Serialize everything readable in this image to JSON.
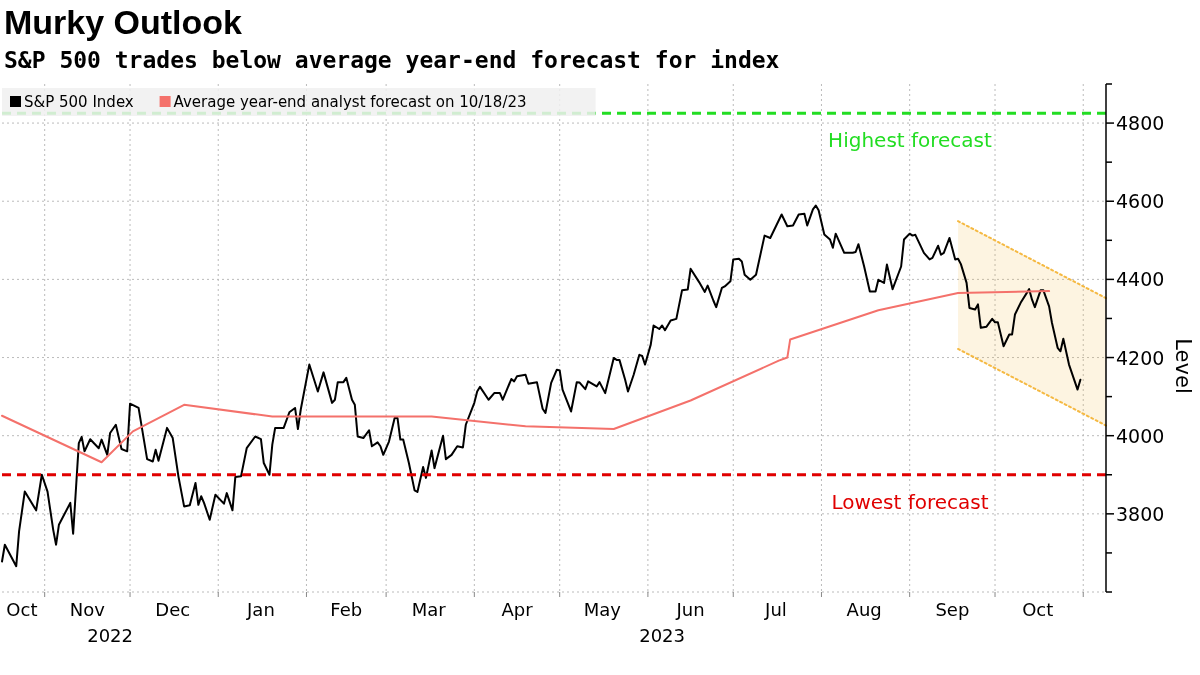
{
  "chart_data": {
    "type": "line",
    "title": "Murky Outlook",
    "subtitle": "S&P 500 trades below average year-end forecast for index",
    "ylabel": "Level",
    "xlim": [
      "2022-10-17",
      "2023-11-09"
    ],
    "ylim": [
      3600,
      4900
    ],
    "yticks": [
      {
        "value": 3600,
        "label": null
      },
      {
        "value": 3700,
        "label": null
      },
      3800,
      {
        "value": 3900,
        "label": null
      },
      4000,
      {
        "value": 4100,
        "label": null
      },
      4200,
      {
        "value": 4300,
        "label": null
      },
      4400,
      {
        "value": 4500,
        "label": null
      },
      4600,
      {
        "value": 4700,
        "label": null
      },
      4800,
      {
        "value": 4900,
        "label": null
      }
    ],
    "xticks": [
      {
        "value": "2022-10-24",
        "label": "Oct"
      },
      {
        "value": "2022-11-01",
        "label": null
      },
      {
        "value": "2022-11-16",
        "label": "Nov"
      },
      {
        "value": "2022-12-01",
        "label": null
      },
      {
        "value": "2022-12-16",
        "label": "Dec"
      },
      {
        "value": "2023-01-01",
        "label": null
      },
      {
        "value": "2023-01-16",
        "label": "Jan"
      },
      {
        "value": "2023-02-01",
        "label": null
      },
      {
        "value": "2023-02-15",
        "label": "Feb"
      },
      {
        "value": "2023-03-01",
        "label": null
      },
      {
        "value": "2023-03-16",
        "label": "Mar"
      },
      {
        "value": "2023-04-01",
        "label": null
      },
      {
        "value": "2023-04-16",
        "label": "Apr"
      },
      {
        "value": "2023-05-01",
        "label": null
      },
      {
        "value": "2023-05-16",
        "label": "May"
      },
      {
        "value": "2023-06-01",
        "label": null
      },
      {
        "value": "2023-06-16",
        "label": "Jun"
      },
      {
        "value": "2023-07-01",
        "label": null
      },
      {
        "value": "2023-07-16",
        "label": "Jul"
      },
      {
        "value": "2023-08-01",
        "label": null
      },
      {
        "value": "2023-08-16",
        "label": "Aug"
      },
      {
        "value": "2023-09-01",
        "label": null
      },
      {
        "value": "2023-09-16",
        "label": "Sep"
      },
      {
        "value": "2023-10-01",
        "label": null
      },
      {
        "value": "2023-10-16",
        "label": "Oct"
      },
      {
        "value": "2023-11-01",
        "label": null
      }
    ],
    "grid": true,
    "legend": "top left",
    "ref_lines": [
      {
        "axis": "y",
        "value": 4825,
        "label": "Highest forecast",
        "color": "#22dd22",
        "line_style": "dashed"
      },
      {
        "axis": "y",
        "value": 3900,
        "label": "Lowest forecast",
        "color": "#e00000",
        "line_style": "dashed"
      }
    ],
    "annotations": [
      "2022",
      "2023"
    ],
    "series": [
      {
        "type": "line",
        "color": "#f5b942",
        "line_style": "dotted",
        "x": [
          "2023-09-18",
          "2023-11-09"
        ],
        "values": [
          4549,
          4352
        ]
      },
      {
        "type": "line",
        "color": "#f5b942",
        "line_style": "dotted",
        "x": [
          "2023-09-18",
          "2023-11-09"
        ],
        "values": [
          4222,
          4026
        ]
      },
      {
        "name": "S&P 500 Index",
        "color": "#000000",
        "x": [
          "2022-10-17",
          "2022-10-18",
          "2022-10-22",
          "2022-10-23",
          "2022-10-25",
          "2022-10-29",
          "2022-10-31",
          "2022-11-02",
          "2022-11-04",
          "2022-11-05",
          "2022-11-06",
          "2022-11-10",
          "2022-11-11",
          "2022-11-13",
          "2022-11-14",
          "2022-11-15",
          "2022-11-17",
          "2022-11-20",
          "2022-11-21",
          "2022-11-23",
          "2022-11-24",
          "2022-11-26",
          "2022-11-28",
          "2022-11-30",
          "2022-12-01",
          "2022-12-04",
          "2022-12-07",
          "2022-12-09",
          "2022-12-10",
          "2022-12-11",
          "2022-12-14",
          "2022-12-16",
          "2022-12-18",
          "2022-12-20",
          "2022-12-22",
          "2022-12-24",
          "2022-12-25",
          "2022-12-26",
          "2022-12-27",
          "2022-12-29",
          "2022-12-31",
          "2023-01-03",
          "2023-01-04",
          "2023-01-06",
          "2023-01-07",
          "2023-01-09",
          "2023-01-11",
          "2023-01-14",
          "2023-01-16",
          "2023-01-17",
          "2023-01-19",
          "2023-01-20",
          "2023-01-21",
          "2023-01-24",
          "2023-01-26",
          "2023-01-28",
          "2023-01-29",
          "2023-01-30",
          "2023-02-02",
          "2023-02-05",
          "2023-02-07",
          "2023-02-10",
          "2023-02-11",
          "2023-02-12",
          "2023-02-14",
          "2023-02-15",
          "2023-02-17",
          "2023-02-18",
          "2023-02-19",
          "2023-02-21",
          "2023-02-23",
          "2023-02-24",
          "2023-02-26",
          "2023-02-27",
          "2023-02-28",
          "2023-03-02",
          "2023-03-04",
          "2023-03-05",
          "2023-03-06",
          "2023-03-07",
          "2023-03-09",
          "2023-03-11",
          "2023-03-12",
          "2023-03-14",
          "2023-03-15",
          "2023-03-17",
          "2023-03-18",
          "2023-03-21",
          "2023-03-22",
          "2023-03-24",
          "2023-03-26",
          "2023-03-28",
          "2023-03-29",
          "2023-04-01",
          "2023-04-02",
          "2023-04-03",
          "2023-04-06",
          "2023-04-08",
          "2023-04-10",
          "2023-04-11",
          "2023-04-14",
          "2023-04-15",
          "2023-04-16",
          "2023-04-19",
          "2023-04-20",
          "2023-04-23",
          "2023-04-25",
          "2023-04-26",
          "2023-04-28",
          "2023-04-30",
          "2023-05-01",
          "2023-05-02",
          "2023-05-05",
          "2023-05-07",
          "2023-05-08",
          "2023-05-10",
          "2023-05-11",
          "2023-05-14",
          "2023-05-15",
          "2023-05-17",
          "2023-05-20",
          "2023-05-21",
          "2023-05-22",
          "2023-05-24",
          "2023-05-25",
          "2023-05-27",
          "2023-05-29",
          "2023-05-30",
          "2023-05-31",
          "2023-06-02",
          "2023-06-03",
          "2023-06-05",
          "2023-06-06",
          "2023-06-07",
          "2023-06-09",
          "2023-06-11",
          "2023-06-13",
          "2023-06-15",
          "2023-06-16",
          "2023-06-19",
          "2023-06-21",
          "2023-06-22",
          "2023-06-24",
          "2023-06-25",
          "2023-06-27",
          "2023-06-28",
          "2023-06-30",
          "2023-07-01",
          "2023-07-03",
          "2023-07-04",
          "2023-07-05",
          "2023-07-07",
          "2023-07-09",
          "2023-07-12",
          "2023-07-14",
          "2023-07-16",
          "2023-07-18",
          "2023-07-20",
          "2023-07-22",
          "2023-07-24",
          "2023-07-26",
          "2023-07-27",
          "2023-07-29",
          "2023-07-30",
          "2023-07-31",
          "2023-08-02",
          "2023-08-04",
          "2023-08-05",
          "2023-08-06",
          "2023-08-09",
          "2023-08-12",
          "2023-08-13",
          "2023-08-14",
          "2023-08-16",
          "2023-08-18",
          "2023-08-20",
          "2023-08-21",
          "2023-08-23",
          "2023-08-24",
          "2023-08-26",
          "2023-08-29",
          "2023-08-30",
          "2023-09-01",
          "2023-09-02",
          "2023-09-03",
          "2023-09-06",
          "2023-09-08",
          "2023-09-09",
          "2023-09-11",
          "2023-09-12",
          "2023-09-13",
          "2023-09-15",
          "2023-09-17",
          "2023-09-18",
          "2023-09-19",
          "2023-09-21",
          "2023-09-22",
          "2023-09-24",
          "2023-09-25",
          "2023-09-26",
          "2023-09-28",
          "2023-09-30",
          "2023-10-01",
          "2023-10-02",
          "2023-10-04",
          "2023-10-06",
          "2023-10-07",
          "2023-10-08",
          "2023-10-10",
          "2023-10-13",
          "2023-10-14",
          "2023-10-15",
          "2023-10-17",
          "2023-10-18",
          "2023-10-20",
          "2023-10-21",
          "2023-10-23",
          "2023-10-24",
          "2023-10-25",
          "2023-10-27",
          "2023-10-30",
          "2023-10-31"
        ],
        "values": [
          3678,
          3721,
          3666,
          3755,
          3857,
          3809,
          3900,
          3857,
          3759,
          3721,
          3772,
          3828,
          3749,
          3981,
          3997,
          3960,
          3991,
          3968,
          3990,
          3951,
          4007,
          4028,
          3966,
          3960,
          4082,
          4071,
          3940,
          3934,
          3964,
          3936,
          4020,
          3994,
          3896,
          3819,
          3822,
          3879,
          3823,
          3845,
          3828,
          3785,
          3849,
          3826,
          3853,
          3809,
          3894,
          3896,
          3968,
          3998,
          3991,
          3930,
          3900,
          3977,
          4020,
          4020,
          4060,
          4071,
          4017,
          4067,
          4182,
          4113,
          4162,
          4084,
          4092,
          4137,
          4137,
          4148,
          4092,
          4079,
          3998,
          3994,
          4014,
          3973,
          3983,
          3973,
          3951,
          3985,
          4045,
          4045,
          3990,
          3990,
          3930,
          3860,
          3856,
          3920,
          3892,
          3962,
          3917,
          4000,
          3940,
          3951,
          3973,
          3970,
          4028,
          4084,
          4113,
          4125,
          4092,
          4109,
          4109,
          4092,
          4145,
          4139,
          4152,
          4156,
          4133,
          4137,
          4069,
          4058,
          4135,
          4169,
          4167,
          4118,
          4062,
          4137,
          4136,
          4119,
          4139,
          4126,
          4137,
          4109,
          4199,
          4194,
          4194,
          4143,
          4113,
          4156,
          4207,
          4204,
          4182,
          4233,
          4282,
          4273,
          4282,
          4270,
          4295,
          4299,
          4372,
          4374,
          4427,
          4393,
          4368,
          4384,
          4346,
          4329,
          4378,
          4382,
          4395,
          4451,
          4453,
          4446,
          4412,
          4399,
          4412,
          4512,
          4506,
          4536,
          4566,
          4536,
          4538,
          4566,
          4568,
          4538,
          4579,
          4589,
          4577,
          4515,
          4502,
          4481,
          4517,
          4468,
          4468,
          4470,
          4490,
          4433,
          4369,
          4369,
          4399,
          4391,
          4438,
          4375,
          4433,
          4502,
          4517,
          4512,
          4514,
          4468,
          4451,
          4455,
          4486,
          4463,
          4468,
          4506,
          4451,
          4453,
          4439,
          4391,
          4327,
          4323,
          4336,
          4276,
          4279,
          4299,
          4290,
          4290,
          4229,
          4259,
          4259,
          4310,
          4340,
          4375,
          4348,
          4329,
          4372,
          4372,
          4331,
          4289,
          4225,
          4216,
          4248,
          4182,
          4118,
          4143
        ]
      },
      {
        "name": "Average year-end analyst forecast on 10/18/23",
        "color": "#f4716b",
        "x": [
          "2022-10-17",
          "2022-11-21",
          "2022-12-02",
          "2022-12-20",
          "2023-01-20",
          "2023-03-17",
          "2023-04-19",
          "2023-05-20",
          "2023-06-16",
          "2023-07-17",
          "2023-07-20",
          "2023-07-21",
          "2023-08-21",
          "2023-09-18",
          "2023-10-20"
        ],
        "values": [
          4051,
          3932,
          4011,
          4079,
          4049,
          4049,
          4024,
          4017,
          4090,
          4192,
          4200,
          4246,
          4321,
          4365,
          4370
        ]
      }
    ]
  }
}
